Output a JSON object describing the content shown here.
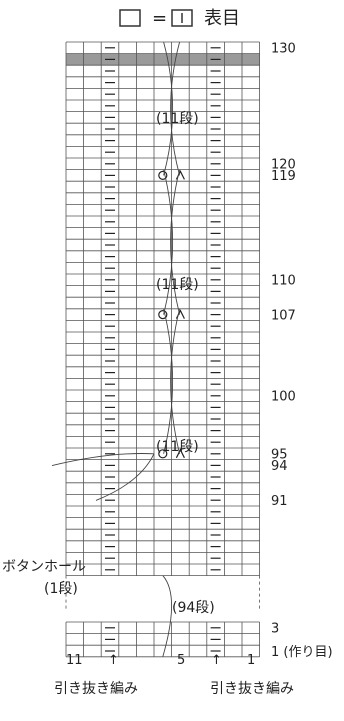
{
  "legend": {
    "equals": "=",
    "meaning": "表目"
  },
  "row_labels": {
    "top": [
      {
        "row": 130,
        "text": "130"
      },
      {
        "row": 120,
        "text": "120"
      },
      {
        "row": 119,
        "text": "119"
      },
      {
        "row": 110,
        "text": "110"
      },
      {
        "row": 107,
        "text": "107"
      },
      {
        "row": 100,
        "text": "100"
      },
      {
        "row": 95,
        "text": "95"
      },
      {
        "row": 94,
        "text": "94"
      },
      {
        "row": 91,
        "text": "91"
      }
    ],
    "bottom": [
      {
        "row": 3,
        "text": "3"
      },
      {
        "row": 1,
        "text": "1 (作り目)"
      }
    ]
  },
  "repeat_notes": [
    "(11段)",
    "(11段)",
    "(11段)"
  ],
  "gap_note": "(94段)",
  "buttonhole": {
    "label": "ボタンホール",
    "rows": "(1段)"
  },
  "stitch_numbers": [
    "11",
    "5",
    "1"
  ],
  "bind_off_notes": [
    "↑",
    "↑"
  ],
  "bind_off_labels": [
    "引き抜き編み",
    "引き抜き編み"
  ],
  "symbols": {
    "purl": "—",
    "yarn_over": "○",
    "decrease": "⋏"
  }
}
